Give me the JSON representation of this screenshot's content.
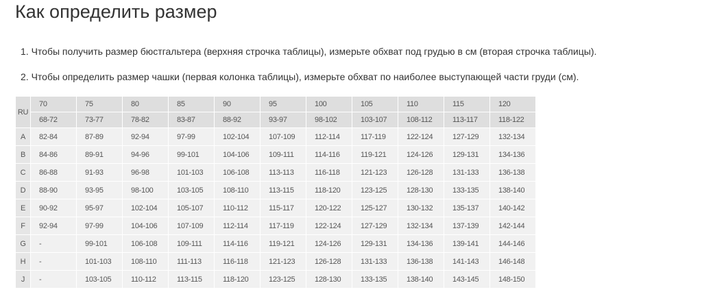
{
  "title": "Как определить размер",
  "instructions": [
    "1. Чтобы получить размер бюстгальтера (верхняя строчка таблицы), измерьте обхват под грудью в см (вторая строчка таблицы).",
    "2. Чтобы определить размер чашки (первая колонка таблицы), измерьте обхват по наиболее выступающей части груди (см)."
  ],
  "table": {
    "corner": "RU",
    "sizes": [
      "70",
      "75",
      "80",
      "85",
      "90",
      "95",
      "100",
      "105",
      "110",
      "115",
      "120"
    ],
    "underbust": [
      "68-72",
      "73-77",
      "78-82",
      "83-87",
      "88-92",
      "93-97",
      "98-102",
      "103-107",
      "108-112",
      "113-117",
      "118-122"
    ],
    "rows": [
      {
        "cup": "A",
        "values": [
          "82-84",
          "87-89",
          "92-94",
          "97-99",
          "102-104",
          "107-109",
          "112-114",
          "117-119",
          "122-124",
          "127-129",
          "132-134"
        ]
      },
      {
        "cup": "B",
        "values": [
          "84-86",
          "89-91",
          "94-96",
          "99-101",
          "104-106",
          "109-111",
          "114-116",
          "119-121",
          "124-126",
          "129-131",
          "134-136"
        ]
      },
      {
        "cup": "C",
        "values": [
          "86-88",
          "91-93",
          "96-98",
          "101-103",
          "106-108",
          "113-113",
          "116-118",
          "121-123",
          "126-128",
          "131-133",
          "136-138"
        ]
      },
      {
        "cup": "D",
        "values": [
          "88-90",
          "93-95",
          "98-100",
          "103-105",
          "108-110",
          "113-115",
          "118-120",
          "123-125",
          "128-130",
          "133-135",
          "138-140"
        ]
      },
      {
        "cup": "E",
        "values": [
          "90-92",
          "95-97",
          "102-104",
          "105-107",
          "110-112",
          "115-117",
          "120-122",
          "125-127",
          "130-132",
          "135-137",
          "140-142"
        ]
      },
      {
        "cup": "F",
        "values": [
          "92-94",
          "97-99",
          "104-106",
          "107-109",
          "112-114",
          "117-119",
          "122-124",
          "127-129",
          "132-134",
          "137-139",
          "142-144"
        ]
      },
      {
        "cup": "G",
        "values": [
          "-",
          "99-101",
          "106-108",
          "109-111",
          "114-116",
          "119-121",
          "124-126",
          "129-131",
          "134-136",
          "139-141",
          "144-146"
        ]
      },
      {
        "cup": "H",
        "values": [
          "-",
          "101-103",
          "108-110",
          "111-113",
          "116-118",
          "121-123",
          "126-128",
          "131-133",
          "136-138",
          "141-143",
          "146-148"
        ]
      },
      {
        "cup": "J",
        "values": [
          "-",
          "103-105",
          "110-112",
          "113-115",
          "118-120",
          "123-125",
          "128-130",
          "133-135",
          "138-140",
          "143-145",
          "148-150"
        ]
      }
    ]
  }
}
